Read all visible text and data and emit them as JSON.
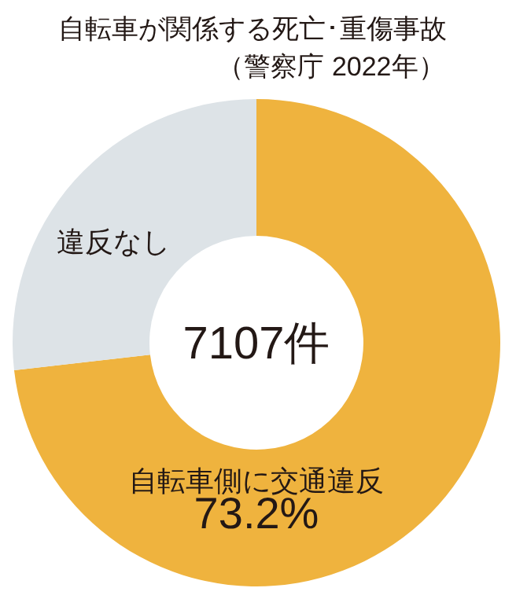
{
  "chart_data": {
    "type": "donut",
    "title": "自転車が関係する死亡･重傷事故",
    "subtitle": "（警察庁 2022年）",
    "categories": [
      "自転車側に交通違反",
      "違反なし"
    ],
    "values": [
      73.2,
      26.8
    ],
    "colors": [
      "#efb33e",
      "#dde3e7"
    ],
    "value_labels": [
      "73.2%",
      null
    ],
    "annotations": [
      "7107件"
    ]
  }
}
